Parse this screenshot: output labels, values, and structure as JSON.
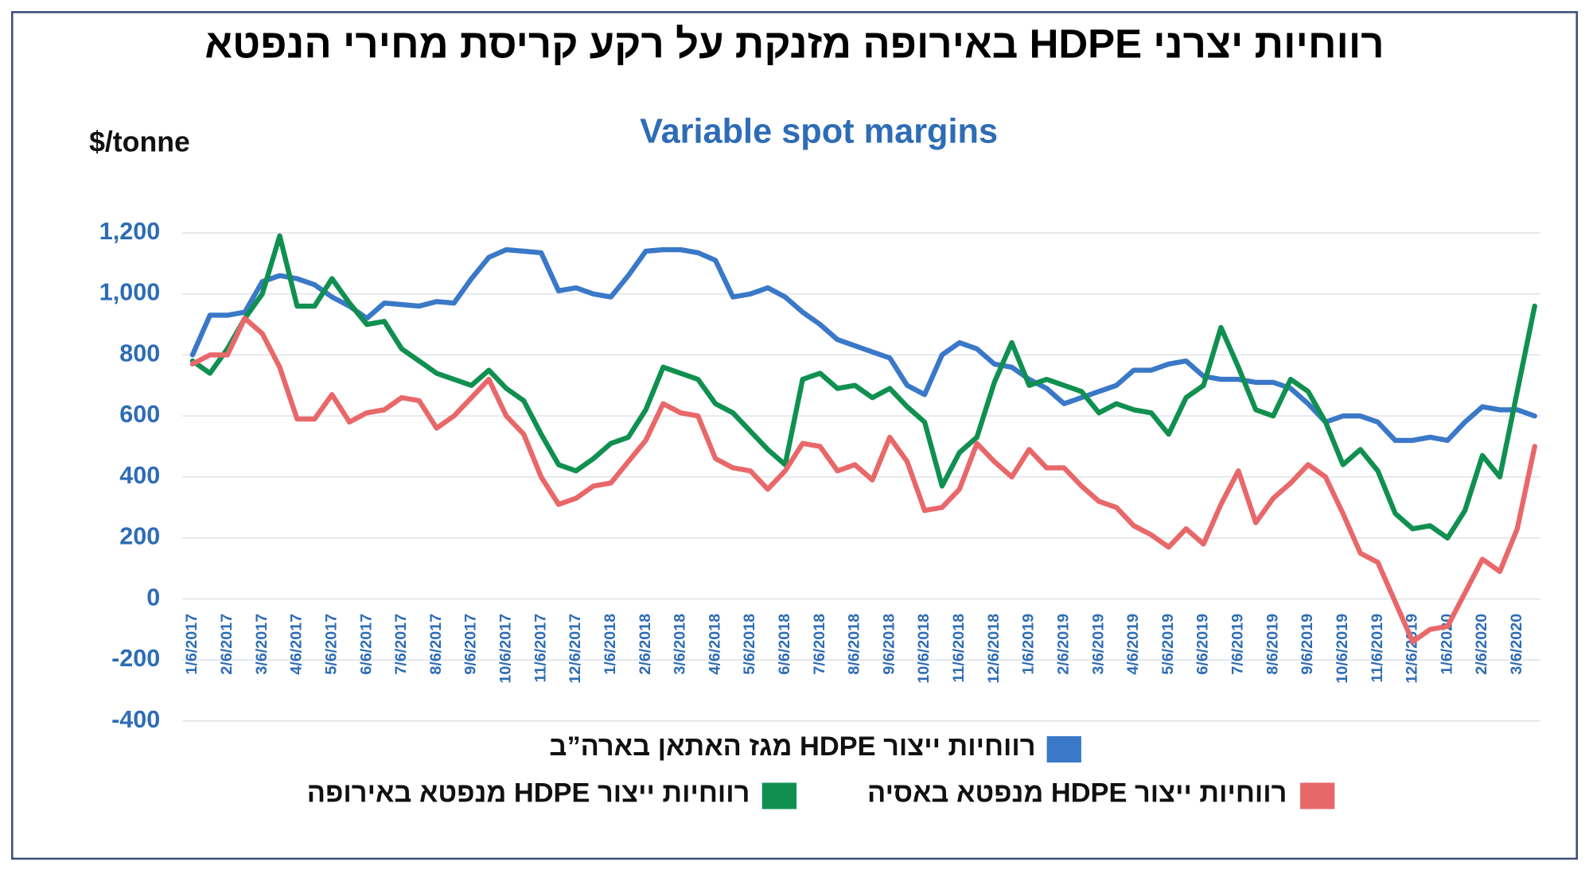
{
  "chart_data": {
    "type": "line",
    "title": "רווחיות יצרני HDPE באירופה מזנקת על רקע קריסת מחירי הנפטא",
    "subtitle": "Variable spot margins",
    "y_label": "$/tonne",
    "categories": [
      "1/6/2017",
      null,
      "2/6/2017",
      null,
      "3/6/2017",
      null,
      "4/6/2017",
      null,
      "5/6/2017",
      null,
      "6/6/2017",
      null,
      "7/6/2017",
      null,
      "8/6/2017",
      null,
      "9/6/2017",
      null,
      "10/6/2017",
      null,
      "11/6/2017",
      null,
      "12/6/2017",
      null,
      "1/6/2018",
      null,
      "2/6/2018",
      null,
      "3/6/2018",
      null,
      "4/6/2018",
      null,
      "5/6/2018",
      null,
      "6/6/2018",
      null,
      "7/6/2018",
      null,
      "8/6/2018",
      null,
      "9/6/2018",
      null,
      "10/6/2018",
      null,
      "11/6/2018",
      null,
      "12/6/2018",
      null,
      "1/6/2019",
      null,
      "2/6/2019",
      null,
      "3/6/2019",
      null,
      "4/6/2019",
      null,
      "5/6/2019",
      null,
      "6/6/2019",
      null,
      "7/6/2019",
      null,
      "8/6/2019",
      null,
      "9/6/2019",
      null,
      "10/6/2019",
      null,
      "11/6/2019",
      null,
      "12/6/2019",
      null,
      "1/6/2020",
      null,
      "2/6/2020",
      null,
      "3/6/2020",
      null
    ],
    "series": [
      {
        "name": "רווחיות ייצור HDPE מגז האתאן בארה”ב",
        "color": "#3a78c8",
        "values": [
          800,
          930,
          930,
          940,
          1040,
          1060,
          1050,
          1030,
          990,
          960,
          920,
          970,
          965,
          960,
          975,
          970,
          1050,
          1120,
          1145,
          1140,
          1135,
          1010,
          1020,
          1000,
          990,
          1060,
          1140,
          1145,
          1145,
          1135,
          1110,
          990,
          1000,
          1020,
          990,
          940,
          900,
          850,
          830,
          810,
          790,
          700,
          670,
          800,
          840,
          820,
          770,
          760,
          720,
          690,
          640,
          660,
          680,
          700,
          750,
          750,
          770,
          780,
          730,
          720,
          720,
          710,
          710,
          690,
          640,
          580,
          600,
          600,
          580,
          520,
          520,
          530,
          520,
          580,
          630,
          620,
          620,
          600
        ]
      },
      {
        "name": "רווחיות ייצור HDPE מנפטא באירופה",
        "color": "#109050",
        "values": [
          780,
          740,
          820,
          920,
          1000,
          1190,
          960,
          960,
          1050,
          970,
          900,
          910,
          820,
          780,
          740,
          720,
          700,
          750,
          690,
          650,
          540,
          440,
          420,
          460,
          510,
          530,
          620,
          760,
          740,
          720,
          640,
          610,
          550,
          490,
          440,
          720,
          740,
          690,
          700,
          660,
          690,
          630,
          580,
          370,
          480,
          530,
          710,
          840,
          700,
          720,
          700,
          680,
          610,
          640,
          620,
          610,
          540,
          660,
          700,
          890,
          760,
          620,
          600,
          720,
          680,
          580,
          440,
          490,
          420,
          280,
          230,
          240,
          200,
          290,
          470,
          400,
          680,
          960
        ]
      },
      {
        "name": "רווחיות ייצור HDPE מנפטא באסיה",
        "color": "#e8686a",
        "values": [
          770,
          800,
          800,
          920,
          870,
          760,
          590,
          590,
          670,
          580,
          610,
          620,
          660,
          650,
          560,
          600,
          660,
          720,
          600,
          540,
          400,
          310,
          330,
          370,
          380,
          450,
          520,
          640,
          610,
          600,
          460,
          430,
          420,
          360,
          420,
          510,
          500,
          420,
          440,
          390,
          530,
          450,
          290,
          300,
          360,
          510,
          450,
          400,
          490,
          430,
          430,
          370,
          320,
          300,
          240,
          210,
          170,
          230,
          180,
          310,
          420,
          250,
          330,
          380,
          440,
          400,
          280,
          150,
          120,
          -10,
          -140,
          -100,
          -90,
          20,
          130,
          90,
          230,
          500
        ]
      }
    ],
    "ylim": [
      -400,
      1200
    ],
    "yticks": [
      -400,
      -200,
      0,
      {
        "value": 200,
        "label": "200"
      },
      400,
      600,
      800,
      {
        "value": 1000,
        "label": "1,000"
      },
      {
        "value": 1200,
        "label": "1,200"
      }
    ],
    "grid": true
  }
}
